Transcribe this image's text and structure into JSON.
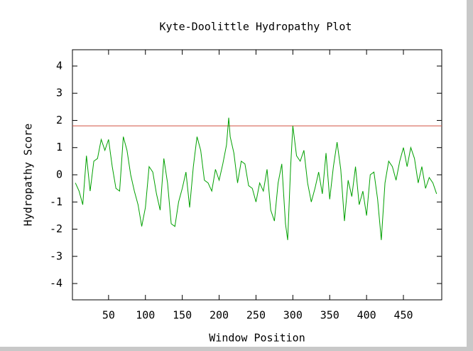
{
  "chart_data": {
    "type": "line",
    "title": "Kyte-Doolittle Hydropathy Plot",
    "x_label": "Window Position",
    "y_label": "Hydropathy Score",
    "x": [
      5,
      10,
      15,
      20,
      25,
      30,
      35,
      40,
      45,
      50,
      55,
      60,
      65,
      70,
      75,
      80,
      85,
      90,
      95,
      100,
      105,
      110,
      115,
      120,
      125,
      130,
      135,
      140,
      145,
      150,
      155,
      160,
      165,
      170,
      175,
      180,
      185,
      190,
      195,
      200,
      205,
      210,
      213,
      215,
      220,
      225,
      230,
      235,
      240,
      245,
      250,
      255,
      260,
      265,
      270,
      275,
      280,
      285,
      290,
      293,
      297,
      300,
      305,
      310,
      315,
      320,
      325,
      330,
      335,
      340,
      345,
      350,
      355,
      360,
      365,
      370,
      375,
      380,
      385,
      390,
      395,
      400,
      405,
      410,
      415,
      420,
      425,
      430,
      435,
      440,
      445,
      450,
      455,
      460,
      465,
      470,
      475,
      480,
      485,
      490,
      495
    ],
    "series": [
      {
        "name": "Hydropathy",
        "color": "#00a000",
        "values": [
          -0.3,
          -0.6,
          -1.1,
          0.7,
          -0.6,
          0.5,
          0.6,
          1.3,
          0.9,
          1.3,
          0.3,
          -0.5,
          -0.6,
          1.4,
          0.9,
          0,
          -0.6,
          -1.1,
          -1.9,
          -1.2,
          0.3,
          0.1,
          -0.7,
          -1.3,
          0.6,
          -0.3,
          -1.8,
          -1.9,
          -1.0,
          -0.5,
          0.1,
          -1.2,
          0.3,
          1.4,
          0.9,
          -0.2,
          -0.3,
          -0.6,
          0.2,
          -0.2,
          0.4,
          1.1,
          2.1,
          1.4,
          0.8,
          -0.3,
          0.5,
          0.4,
          -0.4,
          -0.5,
          -1.0,
          -0.3,
          -0.6,
          0.2,
          -1.3,
          -1.7,
          -0.3,
          0.4,
          -1.8,
          -2.4,
          0.3,
          1.8,
          0.7,
          0.5,
          0.9,
          -0.3,
          -1.0,
          -0.5,
          0.1,
          -0.7,
          0.8,
          -0.9,
          0.3,
          1.2,
          0.2,
          -1.7,
          -0.2,
          -0.8,
          0.3,
          -1.1,
          -0.6,
          -1.5,
          0,
          0.1,
          -0.9,
          -2.4,
          -0.3,
          0.5,
          0.3,
          -0.2,
          0.5,
          1.0,
          0.3,
          1.0,
          0.6,
          -0.3,
          0.3,
          -0.5,
          -0.1,
          -0.3,
          -0.7
        ]
      }
    ],
    "threshold": {
      "value": 1.8,
      "color": "#d05040"
    },
    "xlim": [
      1,
      502
    ],
    "ylim": [
      -4.6,
      4.6
    ],
    "xticks": [
      50,
      100,
      150,
      200,
      250,
      300,
      350,
      400,
      450
    ],
    "yticks": [
      -4,
      -3,
      -2,
      -1,
      0,
      1,
      2,
      3,
      4
    ]
  }
}
